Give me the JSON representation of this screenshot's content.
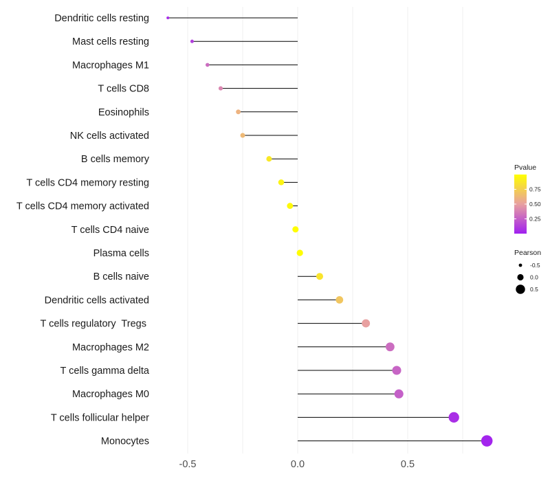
{
  "chart_data": {
    "type": "lollipop",
    "title": "",
    "xlabel": "",
    "ylabel": "",
    "xlim": [
      -0.6,
      0.86
    ],
    "x_ticks": [
      -0.5,
      0.0,
      0.5
    ],
    "x_tick_labels": [
      "-0.5",
      "0.0",
      "0.5"
    ],
    "grid": true,
    "categories": [
      "Dendritic cells resting",
      "Mast cells resting",
      "Macrophages M1",
      "T cells CD8",
      "Eosinophils",
      "NK cells activated",
      "B cells memory",
      "T cells CD4 memory resting",
      "T cells CD4 memory activated",
      "T cells CD4 naive",
      "Plasma cells",
      "B cells naive",
      "Dendritic cells activated",
      "T cells regulatory  Tregs ",
      "Macrophages M2",
      "T cells gamma delta",
      "Macrophages M0",
      "T cells follicular helper",
      "Monocytes"
    ],
    "pearson": [
      -0.59,
      -0.48,
      -0.41,
      -0.35,
      -0.27,
      -0.25,
      -0.13,
      -0.075,
      -0.035,
      -0.01,
      0.01,
      0.1,
      0.19,
      0.31,
      0.42,
      0.45,
      0.46,
      0.71,
      0.86
    ],
    "pvalue": [
      0.05,
      0.12,
      0.3,
      0.4,
      0.6,
      0.63,
      0.88,
      0.94,
      0.97,
      0.99,
      0.99,
      0.86,
      0.7,
      0.5,
      0.3,
      0.27,
      0.25,
      0.06,
      0.02
    ],
    "legend": {
      "position": "right",
      "color_title": "Pvalue",
      "color_ticks": [
        0.25,
        0.5,
        0.75
      ],
      "color_tick_labels": [
        "0.25",
        "0.50",
        "0.75"
      ],
      "color_range": [
        0.0,
        1.0
      ],
      "size_title": "Pearson",
      "size_ticks": [
        -0.5,
        0.0,
        0.5
      ],
      "size_tick_labels": [
        "-0.5",
        "0.0",
        "0.5"
      ]
    },
    "colors": {
      "low": "#a020f0",
      "mid": "#e8a0a0",
      "high": "#ffff00",
      "segment": "#000000",
      "grid": "#ebebeb"
    }
  }
}
